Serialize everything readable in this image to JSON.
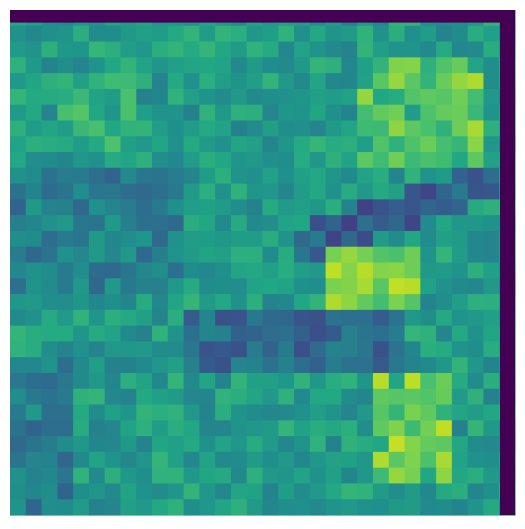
{
  "image": {
    "kind": "pixel-grid",
    "colormap": "viridis",
    "grid_rows": 32,
    "grid_cols": 32,
    "value_range": [
      0,
      1
    ],
    "border_value": 0,
    "background_color": "#ffffff",
    "description_of_content": ""
  }
}
